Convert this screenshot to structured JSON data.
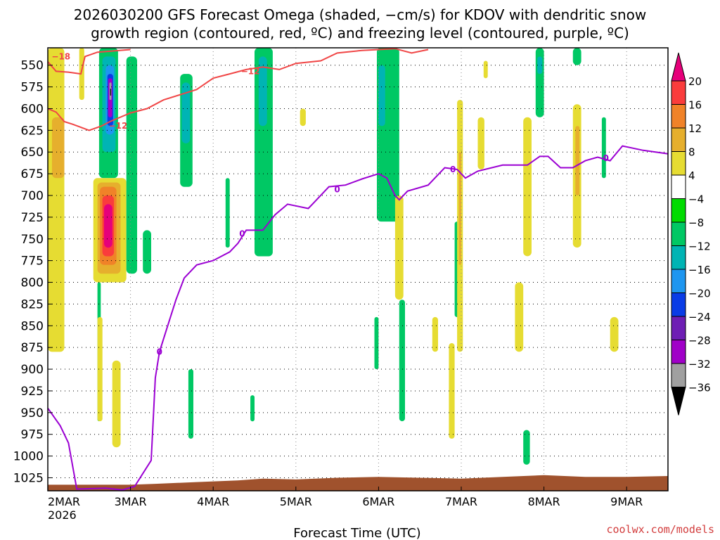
{
  "chart_data": {
    "type": "heatmap",
    "title_line1": "2026030200 GFS Forecast Omega (shaded, −cm/s) for KDOV with dendritic snow",
    "title_line2": "growth region (contoured, red, ºC) and freezing level (contoured, purple, ºC)",
    "xlabel": "Forecast Time (UTC)",
    "credit": "coolwx.com/models",
    "x_first_year": "2026",
    "x_range_days": [
      0,
      7.5
    ],
    "x_ticks": [
      {
        "day": 0,
        "label": "2MAR"
      },
      {
        "day": 1,
        "label": "3MAR"
      },
      {
        "day": 2,
        "label": "4MAR"
      },
      {
        "day": 3,
        "label": "5MAR"
      },
      {
        "day": 4,
        "label": "6MAR"
      },
      {
        "day": 5,
        "label": "7MAR"
      },
      {
        "day": 6,
        "label": "8MAR"
      },
      {
        "day": 7,
        "label": "9MAR"
      }
    ],
    "y_range_hpa": [
      530,
      1040
    ],
    "y_ticks": [
      550,
      575,
      600,
      625,
      650,
      675,
      700,
      725,
      750,
      775,
      800,
      825,
      850,
      875,
      900,
      925,
      950,
      975,
      1000,
      1025
    ],
    "colorbar_bins": [
      {
        "lo": 20,
        "hi": 24,
        "color": "#e6007a"
      },
      {
        "lo": 16,
        "hi": 20,
        "color": "#fa3c3c"
      },
      {
        "lo": 12,
        "hi": 16,
        "color": "#f08228"
      },
      {
        "lo": 8,
        "hi": 12,
        "color": "#e6af2d"
      },
      {
        "lo": 4,
        "hi": 8,
        "color": "#e6dc32"
      },
      {
        "lo": -4,
        "hi": 4,
        "color": "#ffffff"
      },
      {
        "lo": -8,
        "hi": -4,
        "color": "#00dc00"
      },
      {
        "lo": -12,
        "hi": -8,
        "color": "#00c864"
      },
      {
        "lo": -16,
        "hi": -12,
        "color": "#00b4b4"
      },
      {
        "lo": -20,
        "hi": -16,
        "color": "#1e96f0"
      },
      {
        "lo": -24,
        "hi": -20,
        "color": "#0a3ce6"
      },
      {
        "lo": -28,
        "hi": -24,
        "color": "#6e1eb4"
      },
      {
        "lo": -32,
        "hi": -28,
        "color": "#a000c8"
      },
      {
        "lo": -36,
        "hi": -32,
        "color": "#a0a0a0"
      },
      {
        "lo": -40,
        "hi": -36,
        "color": "#000000"
      }
    ],
    "colorbar_labels": [
      "20",
      "16",
      "12",
      "8",
      "4",
      "−4",
      "−8",
      "−12",
      "−16",
      "−20",
      "−24",
      "−28",
      "−32",
      "−36"
    ],
    "omega_patches": [
      {
        "d0": 0.0,
        "d1": 0.2,
        "p0": 530,
        "p1": 880,
        "level": 4
      },
      {
        "d0": 0.05,
        "d1": 0.2,
        "p0": 610,
        "p1": 680,
        "level": 8
      },
      {
        "d0": 0.38,
        "d1": 0.44,
        "p0": 530,
        "p1": 590,
        "level": 4
      },
      {
        "d0": 0.62,
        "d1": 0.85,
        "p0": 530,
        "p1": 680,
        "level": -8
      },
      {
        "d0": 0.66,
        "d1": 0.82,
        "p0": 540,
        "p1": 650,
        "level": -12
      },
      {
        "d0": 0.7,
        "d1": 0.8,
        "p0": 550,
        "p1": 630,
        "level": -16
      },
      {
        "d0": 0.72,
        "d1": 0.79,
        "p0": 560,
        "p1": 620,
        "level": -20
      },
      {
        "d0": 0.73,
        "d1": 0.78,
        "p0": 565,
        "p1": 610,
        "level": -28
      },
      {
        "d0": 0.745,
        "d1": 0.77,
        "p0": 570,
        "p1": 590,
        "level": -32
      },
      {
        "d0": 0.755,
        "d1": 0.765,
        "p0": 577,
        "p1": 585,
        "level": -36
      },
      {
        "d0": 0.55,
        "d1": 0.95,
        "p0": 680,
        "p1": 800,
        "level": 4
      },
      {
        "d0": 0.6,
        "d1": 0.88,
        "p0": 685,
        "p1": 790,
        "level": 8
      },
      {
        "d0": 0.63,
        "d1": 0.83,
        "p0": 690,
        "p1": 780,
        "level": 12
      },
      {
        "d0": 0.66,
        "d1": 0.8,
        "p0": 700,
        "p1": 770,
        "level": 16
      },
      {
        "d0": 0.68,
        "d1": 0.78,
        "p0": 710,
        "p1": 760,
        "level": 20
      },
      {
        "d0": 0.6,
        "d1": 0.64,
        "p0": 800,
        "p1": 960,
        "level": -8
      },
      {
        "d0": 0.78,
        "d1": 0.88,
        "p0": 890,
        "p1": 990,
        "level": 4
      },
      {
        "d0": 0.6,
        "d1": 0.66,
        "p0": 840,
        "p1": 960,
        "level": 4
      },
      {
        "d0": 0.95,
        "d1": 1.08,
        "p0": 540,
        "p1": 790,
        "level": -8
      },
      {
        "d0": 1.15,
        "d1": 1.25,
        "p0": 740,
        "p1": 790,
        "level": -8
      },
      {
        "d0": 1.6,
        "d1": 1.75,
        "p0": 560,
        "p1": 690,
        "level": -8
      },
      {
        "d0": 1.62,
        "d1": 1.72,
        "p0": 570,
        "p1": 640,
        "level": -12
      },
      {
        "d0": 1.7,
        "d1": 1.76,
        "p0": 900,
        "p1": 980,
        "level": -8
      },
      {
        "d0": 2.15,
        "d1": 2.2,
        "p0": 680,
        "p1": 760,
        "level": -8
      },
      {
        "d0": 2.5,
        "d1": 2.72,
        "p0": 530,
        "p1": 770,
        "level": -8
      },
      {
        "d0": 2.55,
        "d1": 2.65,
        "p0": 540,
        "p1": 620,
        "level": -12
      },
      {
        "d0": 2.45,
        "d1": 2.5,
        "p0": 930,
        "p1": 960,
        "level": -8
      },
      {
        "d0": 3.05,
        "d1": 3.12,
        "p0": 600,
        "p1": 620,
        "level": 4
      },
      {
        "d0": 3.98,
        "d1": 4.25,
        "p0": 530,
        "p1": 730,
        "level": -8
      },
      {
        "d0": 4.0,
        "d1": 4.08,
        "p0": 550,
        "p1": 620,
        "level": -12
      },
      {
        "d0": 3.95,
        "d1": 4.0,
        "p0": 840,
        "p1": 900,
        "level": -8
      },
      {
        "d0": 4.25,
        "d1": 4.32,
        "p0": 820,
        "p1": 960,
        "level": -8
      },
      {
        "d0": 4.2,
        "d1": 4.3,
        "p0": 700,
        "p1": 820,
        "level": 4
      },
      {
        "d0": 4.65,
        "d1": 4.72,
        "p0": 840,
        "p1": 880,
        "level": 4
      },
      {
        "d0": 4.85,
        "d1": 4.92,
        "p0": 870,
        "p1": 980,
        "level": 4
      },
      {
        "d0": 4.92,
        "d1": 4.98,
        "p0": 730,
        "p1": 840,
        "level": -8
      },
      {
        "d0": 4.95,
        "d1": 5.02,
        "p0": 590,
        "p1": 880,
        "level": 4
      },
      {
        "d0": 4.97,
        "d1": 5.0,
        "p0": 650,
        "p1": 780,
        "level": 8
      },
      {
        "d0": 5.2,
        "d1": 5.28,
        "p0": 610,
        "p1": 670,
        "level": 4
      },
      {
        "d0": 5.27,
        "d1": 5.32,
        "p0": 545,
        "p1": 565,
        "level": 4
      },
      {
        "d0": 5.65,
        "d1": 5.75,
        "p0": 800,
        "p1": 880,
        "level": 4
      },
      {
        "d0": 5.75,
        "d1": 5.85,
        "p0": 610,
        "p1": 770,
        "level": 4
      },
      {
        "d0": 5.9,
        "d1": 6.0,
        "p0": 530,
        "p1": 610,
        "level": -8
      },
      {
        "d0": 5.92,
        "d1": 5.98,
        "p0": 540,
        "p1": 560,
        "level": -12
      },
      {
        "d0": 5.75,
        "d1": 5.83,
        "p0": 970,
        "p1": 1010,
        "level": -8
      },
      {
        "d0": 6.35,
        "d1": 6.45,
        "p0": 530,
        "p1": 550,
        "level": -8
      },
      {
        "d0": 6.35,
        "d1": 6.45,
        "p0": 595,
        "p1": 760,
        "level": 4
      },
      {
        "d0": 6.38,
        "d1": 6.43,
        "p0": 620,
        "p1": 700,
        "level": 8
      },
      {
        "d0": 6.7,
        "d1": 6.75,
        "p0": 610,
        "p1": 680,
        "level": -8
      },
      {
        "d0": 6.8,
        "d1": 6.9,
        "p0": 840,
        "p1": 880,
        "level": 4
      }
    ],
    "dgz_lines": [
      {
        "value": -18,
        "points": [
          [
            0.0,
            546
          ],
          [
            0.1,
            557
          ],
          [
            0.25,
            558
          ],
          [
            0.4,
            560
          ],
          [
            0.45,
            540
          ],
          [
            0.6,
            535
          ],
          [
            1.0,
            532
          ]
        ]
      },
      {
        "value": -12,
        "points": [
          [
            0.0,
            600
          ],
          [
            0.1,
            604
          ],
          [
            0.2,
            615
          ],
          [
            0.3,
            618
          ],
          [
            0.5,
            625
          ],
          [
            0.65,
            620
          ],
          [
            0.75,
            615
          ],
          [
            1.0,
            605
          ],
          [
            1.2,
            600
          ],
          [
            1.4,
            590
          ],
          [
            1.6,
            584
          ],
          [
            1.8,
            578
          ],
          [
            2.0,
            565
          ],
          [
            2.2,
            560
          ],
          [
            2.4,
            555
          ],
          [
            2.6,
            552
          ],
          [
            2.8,
            555
          ],
          [
            3.0,
            548
          ],
          [
            3.3,
            545
          ],
          [
            3.5,
            536
          ],
          [
            3.8,
            533
          ],
          [
            4.0,
            532
          ],
          [
            4.2,
            531
          ],
          [
            4.4,
            536
          ],
          [
            4.6,
            532
          ]
        ]
      }
    ],
    "freezing_line": {
      "value": 0,
      "points": [
        [
          0.0,
          945
        ],
        [
          0.15,
          965
        ],
        [
          0.25,
          985
        ],
        [
          0.35,
          1038
        ],
        [
          0.7,
          1037
        ],
        [
          0.9,
          1039
        ],
        [
          1.05,
          1035
        ],
        [
          1.25,
          1005
        ],
        [
          1.3,
          910
        ],
        [
          1.35,
          880
        ],
        [
          1.45,
          850
        ],
        [
          1.55,
          820
        ],
        [
          1.65,
          795
        ],
        [
          1.8,
          780
        ],
        [
          2.0,
          775
        ],
        [
          2.2,
          765
        ],
        [
          2.3,
          755
        ],
        [
          2.4,
          740
        ],
        [
          2.6,
          740
        ],
        [
          2.75,
          722
        ],
        [
          2.9,
          710
        ],
        [
          3.0,
          712
        ],
        [
          3.15,
          715
        ],
        [
          3.2,
          710
        ],
        [
          3.4,
          690
        ],
        [
          3.6,
          688
        ],
        [
          3.8,
          681
        ],
        [
          4.0,
          675
        ],
        [
          4.1,
          680
        ],
        [
          4.2,
          700
        ],
        [
          4.25,
          705
        ],
        [
          4.35,
          695
        ],
        [
          4.6,
          688
        ],
        [
          4.8,
          668
        ],
        [
          4.95,
          670
        ],
        [
          5.05,
          680
        ],
        [
          5.2,
          672
        ],
        [
          5.5,
          665
        ],
        [
          5.8,
          665
        ],
        [
          5.95,
          655
        ],
        [
          6.05,
          655
        ],
        [
          6.2,
          668
        ],
        [
          6.35,
          668
        ],
        [
          6.5,
          660
        ],
        [
          6.65,
          656
        ],
        [
          6.8,
          660
        ],
        [
          6.95,
          643
        ],
        [
          7.2,
          648
        ],
        [
          7.5,
          652
        ]
      ]
    },
    "ground_profile": [
      [
        0.0,
        1033
      ],
      [
        0.5,
        1033
      ],
      [
        1.0,
        1033
      ],
      [
        1.3,
        1032
      ],
      [
        1.8,
        1030
      ],
      [
        2.3,
        1028
      ],
      [
        2.6,
        1026
      ],
      [
        3.0,
        1027
      ],
      [
        3.5,
        1025
      ],
      [
        4.0,
        1024
      ],
      [
        4.5,
        1025
      ],
      [
        5.0,
        1026
      ],
      [
        5.5,
        1024
      ],
      [
        6.0,
        1022
      ],
      [
        6.5,
        1024
      ],
      [
        7.0,
        1024
      ],
      [
        7.5,
        1023
      ]
    ]
  }
}
